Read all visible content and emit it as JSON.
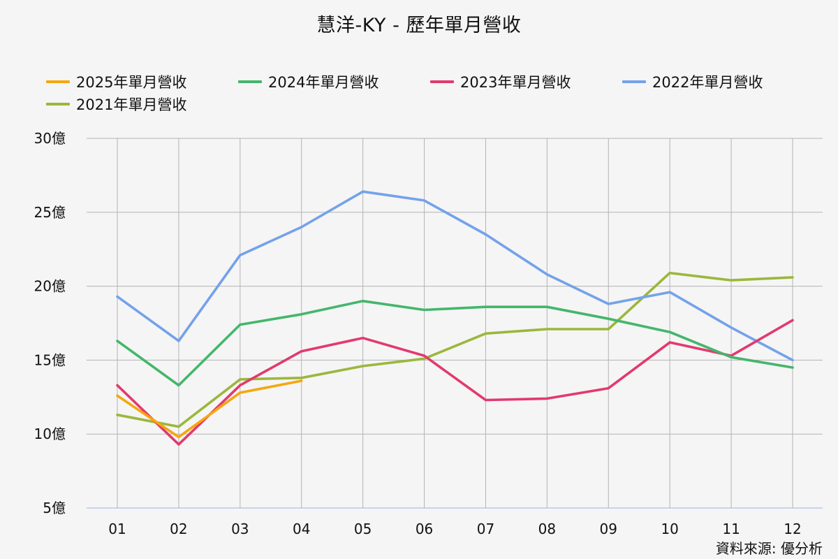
{
  "chart_data": {
    "type": "line",
    "title": "慧洋-KY - 歷年單月營收",
    "xlabel": "",
    "ylabel": "",
    "categories": [
      "01",
      "02",
      "03",
      "04",
      "05",
      "06",
      "07",
      "08",
      "09",
      "10",
      "11",
      "12"
    ],
    "ylim": [
      5,
      30
    ],
    "y_ticks": [
      {
        "value": 30,
        "label": "30億"
      },
      {
        "value": 25,
        "label": "25億"
      },
      {
        "value": 20,
        "label": "20億"
      },
      {
        "value": 15,
        "label": "15億"
      },
      {
        "value": 10,
        "label": "10億"
      },
      {
        "value": 5,
        "label": "5億"
      }
    ],
    "grid": true,
    "legend_position": "top",
    "series": [
      {
        "name": "2025年單月營收",
        "color": "#f5a70f",
        "values": [
          12.6,
          9.8,
          12.8,
          13.6,
          null,
          null,
          null,
          null,
          null,
          null,
          null,
          null
        ]
      },
      {
        "name": "2024年單月營收",
        "color": "#44b66c",
        "values": [
          16.3,
          13.3,
          17.4,
          18.1,
          19.0,
          18.4,
          18.6,
          18.6,
          17.8,
          16.9,
          15.2,
          14.5
        ]
      },
      {
        "name": "2023年單月營收",
        "color": "#e23a6e",
        "values": [
          13.3,
          9.3,
          13.3,
          15.6,
          16.5,
          15.3,
          12.3,
          12.4,
          13.1,
          16.2,
          15.3,
          17.7
        ]
      },
      {
        "name": "2022年單月營收",
        "color": "#74a2ea",
        "values": [
          19.3,
          16.3,
          22.1,
          24.0,
          26.4,
          25.8,
          23.5,
          20.8,
          18.8,
          19.6,
          17.2,
          15.0
        ]
      },
      {
        "name": "2021年單月營收",
        "color": "#9bb73c",
        "values": [
          11.3,
          10.5,
          13.7,
          13.8,
          14.6,
          15.1,
          16.8,
          17.1,
          17.1,
          20.9,
          20.4,
          20.6
        ]
      }
    ]
  },
  "source_note": "資料來源: 優分析"
}
